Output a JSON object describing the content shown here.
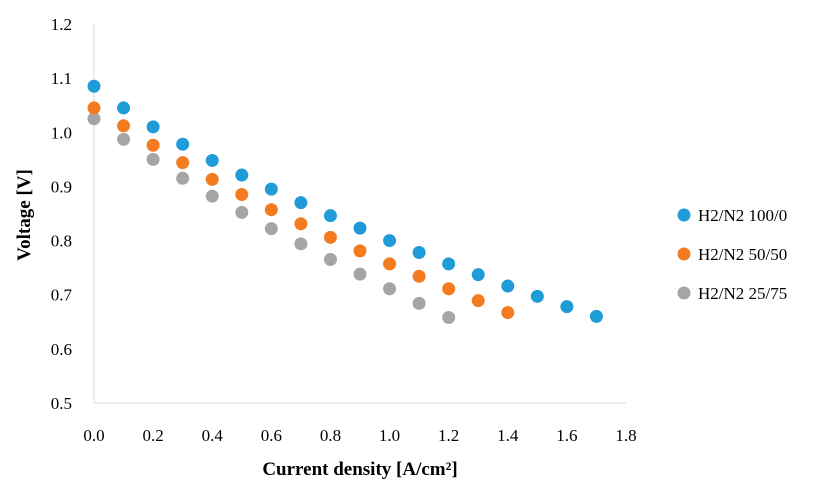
{
  "chart_data": {
    "type": "scatter",
    "title": "",
    "xlabel": "Current density [A/cm²]",
    "ylabel": "Voltage [V]",
    "xlim": [
      0.0,
      1.8
    ],
    "ylim": [
      0.5,
      1.2
    ],
    "x_ticks": [
      "0.0",
      "0.2",
      "0.4",
      "0.6",
      "0.8",
      "1.0",
      "1.2",
      "1.4",
      "1.6",
      "1.8"
    ],
    "y_ticks": [
      "0.5",
      "0.6",
      "0.7",
      "0.8",
      "0.9",
      "1.0",
      "1.1",
      "1.2"
    ],
    "grid": false,
    "legend_position": "right",
    "series": [
      {
        "name": "H2/N2 100/0",
        "color": "#1f9bd7",
        "x": [
          0.0,
          0.1,
          0.2,
          0.3,
          0.4,
          0.5,
          0.6,
          0.7,
          0.8,
          0.9,
          1.0,
          1.1,
          1.2,
          1.3,
          1.4,
          1.5,
          1.6,
          1.7
        ],
        "y": [
          1.085,
          1.045,
          1.01,
          0.978,
          0.948,
          0.921,
          0.895,
          0.87,
          0.846,
          0.823,
          0.8,
          0.778,
          0.757,
          0.737,
          0.716,
          0.697,
          0.678,
          0.66
        ]
      },
      {
        "name": "H2/N2 50/50",
        "color": "#f47b20",
        "x": [
          0.0,
          0.1,
          0.2,
          0.3,
          0.4,
          0.5,
          0.6,
          0.7,
          0.8,
          0.9,
          1.0,
          1.1,
          1.2,
          1.3,
          1.4
        ],
        "y": [
          1.045,
          1.012,
          0.976,
          0.944,
          0.913,
          0.885,
          0.857,
          0.831,
          0.806,
          0.781,
          0.757,
          0.734,
          0.711,
          0.689,
          0.667
        ]
      },
      {
        "name": "H2/N2 25/75",
        "color": "#a5a5a5",
        "x": [
          0.0,
          0.1,
          0.2,
          0.3,
          0.4,
          0.5,
          0.6,
          0.7,
          0.8,
          0.9,
          1.0,
          1.1,
          1.2
        ],
        "y": [
          1.025,
          0.987,
          0.95,
          0.915,
          0.882,
          0.852,
          0.822,
          0.794,
          0.765,
          0.738,
          0.711,
          0.684,
          0.658
        ]
      }
    ]
  }
}
